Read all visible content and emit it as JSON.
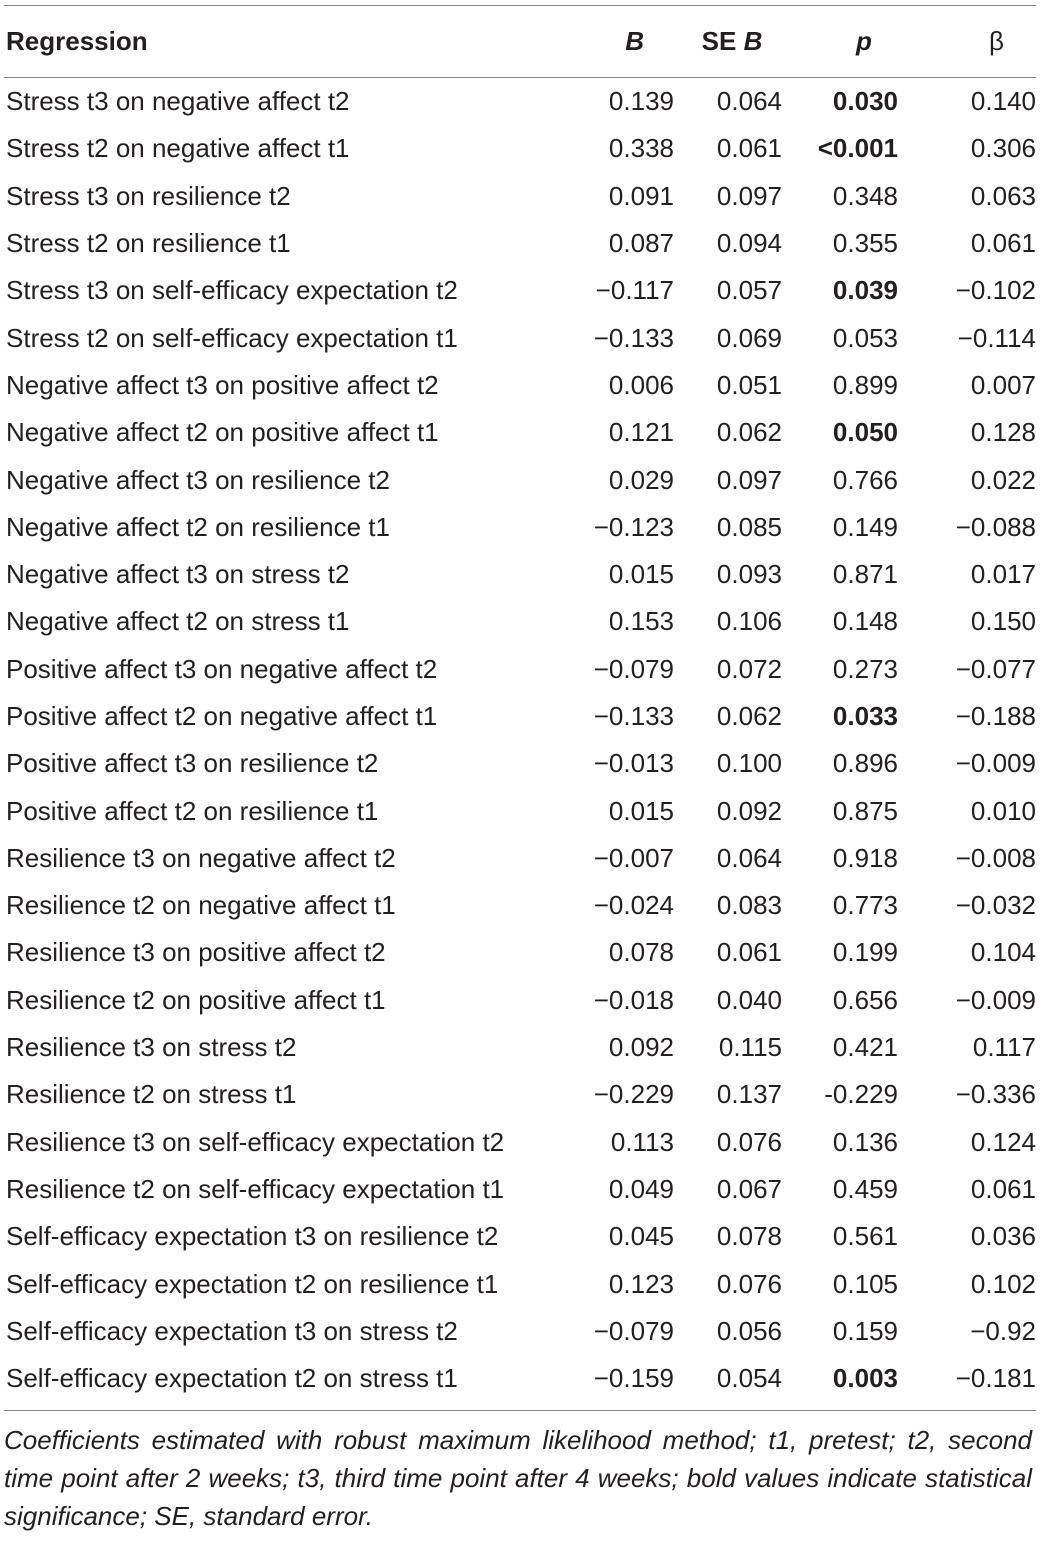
{
  "table": {
    "headers": {
      "regression": "Regression",
      "b": "B",
      "se_prefix": "SE ",
      "se_suffix": "B",
      "p": "p",
      "beta": "β"
    },
    "rows": [
      {
        "label": "Stress t3 on negative affect t2",
        "b": "0.139",
        "se": "0.064",
        "p": "0.030",
        "beta": "0.140",
        "sig": true
      },
      {
        "label": "Stress t2 on negative affect t1",
        "b": "0.338",
        "se": "0.061",
        "p": "<0.001",
        "beta": "0.306",
        "sig": true
      },
      {
        "label": "Stress t3 on resilience t2",
        "b": "0.091",
        "se": "0.097",
        "p": "0.348",
        "beta": "0.063",
        "sig": false
      },
      {
        "label": "Stress t2 on resilience t1",
        "b": "0.087",
        "se": "0.094",
        "p": "0.355",
        "beta": "0.061",
        "sig": false
      },
      {
        "label": "Stress t3 on self-efficacy expectation t2",
        "b": "−0.117",
        "se": "0.057",
        "p": "0.039",
        "beta": "−0.102",
        "sig": true
      },
      {
        "label": "Stress t2 on self-efficacy expectation t1",
        "b": "−0.133",
        "se": "0.069",
        "p": "0.053",
        "beta": "−0.114",
        "sig": false
      },
      {
        "label": "Negative affect t3 on positive affect t2",
        "b": "0.006",
        "se": "0.051",
        "p": "0.899",
        "beta": "0.007",
        "sig": false
      },
      {
        "label": "Negative affect t2 on positive affect t1",
        "b": "0.121",
        "se": "0.062",
        "p": "0.050",
        "beta": "0.128",
        "sig": true
      },
      {
        "label": "Negative affect t3 on resilience t2",
        "b": "0.029",
        "se": "0.097",
        "p": "0.766",
        "beta": "0.022",
        "sig": false
      },
      {
        "label": "Negative affect t2 on resilience t1",
        "b": "−0.123",
        "se": "0.085",
        "p": "0.149",
        "beta": "−0.088",
        "sig": false
      },
      {
        "label": "Negative affect t3 on stress t2",
        "b": "0.015",
        "se": "0.093",
        "p": "0.871",
        "beta": "0.017",
        "sig": false
      },
      {
        "label": "Negative affect t2 on stress t1",
        "b": "0.153",
        "se": "0.106",
        "p": "0.148",
        "beta": "0.150",
        "sig": false
      },
      {
        "label": "Positive affect t3 on negative affect t2",
        "b": "−0.079",
        "se": "0.072",
        "p": "0.273",
        "beta": "−0.077",
        "sig": false
      },
      {
        "label": "Positive affect t2 on negative affect t1",
        "b": "−0.133",
        "se": "0.062",
        "p": "0.033",
        "beta": "−0.188",
        "sig": true
      },
      {
        "label": "Positive affect t3 on resilience t2",
        "b": "−0.013",
        "se": "0.100",
        "p": "0.896",
        "beta": "−0.009",
        "sig": false
      },
      {
        "label": "Positive affect t2 on resilience t1",
        "b": "0.015",
        "se": "0.092",
        "p": "0.875",
        "beta": "0.010",
        "sig": false
      },
      {
        "label": "Resilience t3 on negative affect t2",
        "b": "−0.007",
        "se": "0.064",
        "p": "0.918",
        "beta": "−0.008",
        "sig": false
      },
      {
        "label": "Resilience t2 on negative affect t1",
        "b": "−0.024",
        "se": "0.083",
        "p": "0.773",
        "beta": "−0.032",
        "sig": false
      },
      {
        "label": "Resilience t3 on positive affect t2",
        "b": "0.078",
        "se": "0.061",
        "p": "0.199",
        "beta": "0.104",
        "sig": false
      },
      {
        "label": "Resilience t2 on positive affect t1",
        "b": "−0.018",
        "se": "0.040",
        "p": "0.656",
        "beta": "−0.009",
        "sig": false
      },
      {
        "label": "Resilience t3 on stress t2",
        "b": "0.092",
        "se": "0.115",
        "p": "0.421",
        "beta": "0.117",
        "sig": false
      },
      {
        "label": "Resilience t2 on stress t1",
        "b": "−0.229",
        "se": "0.137",
        "p": "-0.229",
        "beta": "−0.336",
        "sig": false
      },
      {
        "label": "Resilience t3 on self-efficacy expectation t2",
        "b": "0.113",
        "se": "0.076",
        "p": "0.136",
        "beta": "0.124",
        "sig": false
      },
      {
        "label": "Resilience t2 on self-efficacy expectation t1",
        "b": "0.049",
        "se": "0.067",
        "p": "0.459",
        "beta": "0.061",
        "sig": false
      },
      {
        "label": "Self-efficacy expectation t3 on resilience t2",
        "b": "0.045",
        "se": "0.078",
        "p": "0.561",
        "beta": "0.036",
        "sig": false
      },
      {
        "label": "Self-efficacy expectation t2 on resilience t1",
        "b": "0.123",
        "se": "0.076",
        "p": "0.105",
        "beta": "0.102",
        "sig": false
      },
      {
        "label": "Self-efficacy expectation t3 on stress t2",
        "b": "−0.079",
        "se": "0.056",
        "p": "0.159",
        "beta": "−0.92",
        "sig": false
      },
      {
        "label": "Self-efficacy expectation t2 on stress t1",
        "b": "−0.159",
        "se": "0.054",
        "p": "0.003",
        "beta": "−0.181",
        "sig": true
      }
    ]
  },
  "footnote": "Coefficients estimated with robust maximum likelihood method; t1, pretest; t2, second time point after 2 weeks; t3, third time point after 4 weeks; bold values indicate statistical significance; SE, standard error."
}
